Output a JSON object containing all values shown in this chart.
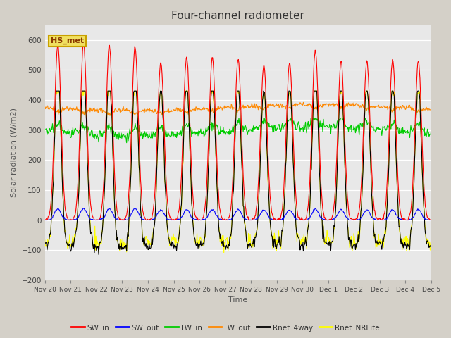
{
  "title": "Four-channel radiometer",
  "xlabel": "Time",
  "ylabel": "Solar radiation (W/m2)",
  "ylim": [
    -200,
    650
  ],
  "yticks": [
    -200,
    -100,
    0,
    100,
    200,
    300,
    400,
    500,
    600
  ],
  "fig_facecolor": "#d4d0c8",
  "plot_bg_color": "#e8e8e8",
  "annotation_text": "HS_met",
  "n_days": 15,
  "day_labels": [
    "Nov 20",
    "Nov 21",
    "Nov 22",
    "Nov 23",
    "Nov 24",
    "Nov 25",
    "Nov 26",
    "Nov 27",
    "Nov 28",
    "Nov 29",
    "Nov 30",
    "Dec 1",
    "Dec 2",
    "Dec 3",
    "Dec 4",
    "Dec 5"
  ],
  "series": {
    "SW_in": {
      "color": "#ff0000",
      "lw": 0.8
    },
    "SW_out": {
      "color": "#0000ff",
      "lw": 0.8
    },
    "LW_in": {
      "color": "#00cc00",
      "lw": 0.8
    },
    "LW_out": {
      "color": "#ff8800",
      "lw": 0.8
    },
    "Rnet_4way": {
      "color": "#000000",
      "lw": 0.8
    },
    "Rnet_NRLite": {
      "color": "#ffff00",
      "lw": 0.8
    }
  },
  "legend_order": [
    "SW_in",
    "SW_out",
    "LW_in",
    "LW_out",
    "Rnet_4way",
    "Rnet_NRLite"
  ]
}
